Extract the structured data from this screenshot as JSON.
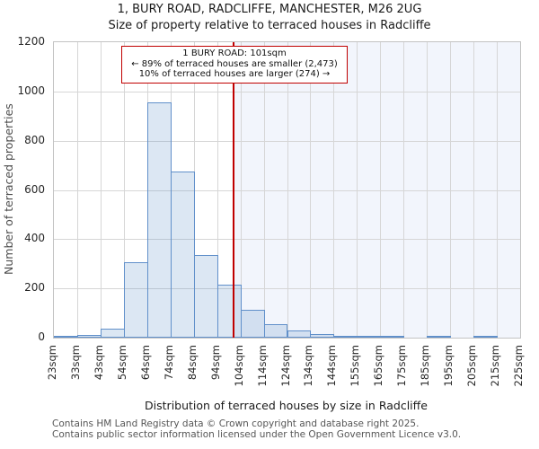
{
  "title": "1, BURY ROAD, RADCLIFFE, MANCHESTER, M26 2UG",
  "subtitle": "Size of property relative to terraced houses in Radcliffe",
  "annotation": {
    "line1": "1 BURY ROAD: 101sqm",
    "line2": "← 89% of terraced houses are smaller (2,473)",
    "line3": "10% of terraced houses are larger (274) →"
  },
  "chart_data": {
    "type": "bar",
    "title": "1, BURY ROAD, RADCLIFFE, MANCHESTER, M26 2UG",
    "subtitle": "Size of property relative to terraced houses in Radcliffe",
    "xlabel": "Distribution of terraced houses by size in Radcliffe",
    "ylabel": "Number of terraced properties",
    "tick_labels": [
      "23sqm",
      "33sqm",
      "43sqm",
      "54sqm",
      "64sqm",
      "74sqm",
      "84sqm",
      "94sqm",
      "104sqm",
      "114sqm",
      "124sqm",
      "134sqm",
      "144sqm",
      "155sqm",
      "165sqm",
      "175sqm",
      "185sqm",
      "195sqm",
      "205sqm",
      "215sqm",
      "225sqm"
    ],
    "bin_edges_sqm": [
      23,
      33,
      43,
      54,
      64,
      74,
      84,
      94,
      104,
      114,
      124,
      134,
      144,
      155,
      165,
      175,
      185,
      195,
      205,
      215,
      225
    ],
    "values": [
      4,
      10,
      35,
      305,
      955,
      675,
      335,
      215,
      112,
      55,
      28,
      15,
      8,
      4,
      4,
      0,
      3,
      0,
      3,
      0
    ],
    "yticks": [
      0,
      200,
      400,
      600,
      800,
      1000,
      1200
    ],
    "ylim": [
      0,
      1200
    ],
    "marker_value_sqm": 101,
    "grid": true,
    "legend": "none"
  },
  "colors": {
    "bar_fill": "#dce6f4",
    "bar_border": "#6190ca",
    "marker_line": "#c00000",
    "annotation_border": "#c00000",
    "shade_right_of_marker": "#f2f5fc",
    "gridline": "#d6d6d6",
    "plot_border": "#c3c3c3",
    "footer_text": "#565656"
  },
  "footer": {
    "line1": "Contains HM Land Registry data © Crown copyright and database right 2025.",
    "line2": "Contains public sector information licensed under the Open Government Licence v3.0."
  }
}
